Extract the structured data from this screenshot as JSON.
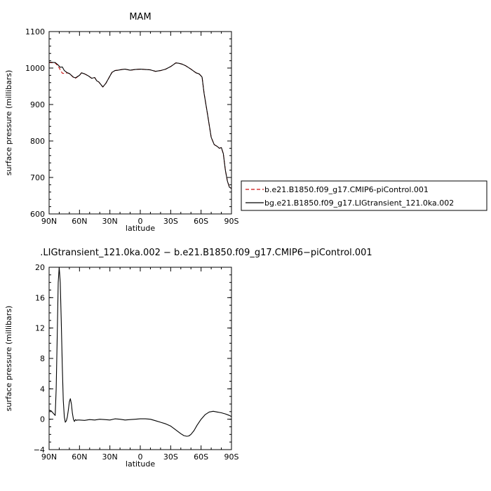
{
  "chart_data": [
    {
      "type": "line",
      "title": "MAM",
      "xlabel": "",
      "ylabel": "surface pressure (millibars)",
      "x_ticks": [
        "90N",
        "60N",
        "30N",
        "0",
        "30S",
        "60S",
        "90S"
      ],
      "x_tick_values": [
        90,
        60,
        30,
        0,
        -30,
        -60,
        -90
      ],
      "y_ticks": [
        "600",
        "700",
        "800",
        "900",
        "1000",
        "1100"
      ],
      "y_tick_values": [
        600,
        700,
        800,
        900,
        1000,
        1100
      ],
      "xlim": [
        90,
        -90
      ],
      "ylim": [
        600,
        1100
      ],
      "legend_position": "right",
      "series": [
        {
          "name": "b.e21.B1850.f09_g17.CMIP6-piControl.001",
          "color": "#cc1111",
          "dash": "dashed",
          "x": [
            90,
            84,
            81,
            79,
            77,
            75,
            72,
            70,
            66,
            64,
            60,
            58,
            55,
            51,
            48,
            45,
            43,
            41,
            39,
            37,
            34,
            32,
            28,
            25,
            22,
            18,
            15,
            10,
            5,
            0,
            -5,
            -10,
            -15,
            -20,
            -25,
            -30,
            -33,
            -35,
            -38,
            -41,
            -45,
            -50,
            -55,
            -58,
            -59.5,
            -61,
            -63,
            -66,
            -70,
            -73,
            -76,
            -78,
            -80,
            -82,
            -84,
            -86,
            -88,
            -90
          ],
          "y": [
            1015,
            1014,
            1005,
            995,
            986,
            985,
            987,
            985,
            974,
            972,
            980,
            987,
            984,
            978,
            972,
            974,
            965,
            962,
            955,
            948,
            958,
            968,
            988,
            993,
            994,
            996,
            997,
            994,
            996,
            997,
            996,
            995,
            991,
            993,
            997,
            1004,
            1010,
            1014,
            1013,
            1011,
            1006,
            997,
            987,
            984,
            980,
            975,
            930,
            880,
            810,
            790,
            785,
            780,
            782,
            765,
            720,
            690,
            673,
            670
          ]
        },
        {
          "name": "bg.e21.B1850.f09_g17.LIGtransient_121.0ka.002",
          "color": "#000000",
          "dash": "solid",
          "x": [
            90,
            84,
            81,
            79,
            77,
            75,
            72,
            70,
            66,
            64,
            60,
            58,
            55,
            51,
            48,
            45,
            43,
            41,
            39,
            37,
            34,
            32,
            28,
            25,
            22,
            18,
            15,
            10,
            5,
            0,
            -5,
            -10,
            -15,
            -20,
            -25,
            -30,
            -33,
            -35,
            -38,
            -41,
            -45,
            -50,
            -55,
            -58,
            -59.5,
            -61,
            -63,
            -66,
            -70,
            -73,
            -76,
            -78,
            -80,
            -82,
            -84,
            -86,
            -88,
            -90
          ],
          "y": [
            1016,
            1015,
            1008,
            1002,
            1003,
            993,
            987,
            985,
            975,
            973,
            980,
            987,
            984,
            978,
            972,
            974,
            965,
            962,
            955,
            948,
            958,
            968,
            988,
            993,
            994,
            996,
            997,
            994,
            996,
            997,
            996,
            995,
            991,
            993,
            997,
            1004,
            1010,
            1014,
            1013,
            1011,
            1006,
            997,
            987,
            984,
            980,
            975,
            930,
            880,
            810,
            790,
            785,
            780,
            782,
            765,
            720,
            690,
            673,
            670
          ]
        }
      ]
    },
    {
      "type": "line",
      "title": ".LIGtransient_121.0ka.002 − b.e21.B1850.f09_g17.CMIP6−piControl.001",
      "xlabel": "latitude",
      "ylabel": "surface pressure (millibars)",
      "x_ticks": [
        "90N",
        "60N",
        "30N",
        "0",
        "30S",
        "60S",
        "90S"
      ],
      "x_tick_values": [
        90,
        60,
        30,
        0,
        -30,
        -60,
        -90
      ],
      "y_ticks": [
        "−4",
        "0",
        "4",
        "8",
        "12",
        "16",
        "20"
      ],
      "y_tick_values": [
        -4,
        0,
        4,
        8,
        12,
        16,
        20
      ],
      "xlim": [
        90,
        -90
      ],
      "ylim": [
        -4,
        20
      ],
      "series": [
        {
          "name": "",
          "color": "#000000",
          "dash": "solid",
          "x": [
            90,
            88,
            86,
            84,
            83,
            82,
            81,
            80,
            79,
            78,
            77,
            76,
            75,
            74,
            73,
            72,
            71,
            70,
            69,
            68,
            67,
            66,
            65,
            64,
            63,
            62,
            60,
            55,
            50,
            45,
            40,
            35,
            30,
            25,
            20,
            15,
            10,
            5,
            0,
            -5,
            -10,
            -15,
            -20,
            -25,
            -30,
            -33,
            -36,
            -40,
            -43,
            -46,
            -48,
            -50,
            -53,
            -56,
            -60,
            -64,
            -68,
            -72,
            -76,
            -80,
            -84,
            -88,
            -90
          ],
          "y": [
            1.2,
            1.1,
            0.8,
            0.5,
            4,
            11,
            18,
            20,
            18,
            13,
            7,
            2.5,
            0.3,
            -0.4,
            -0.2,
            0.3,
            1.2,
            2.3,
            2.7,
            2.0,
            0.8,
            0.0,
            -0.3,
            -0.05,
            -0.15,
            -0.1,
            -0.1,
            -0.15,
            -0.05,
            -0.1,
            0.0,
            -0.05,
            -0.1,
            0.05,
            0.0,
            -0.1,
            -0.05,
            0.0,
            0.05,
            0.05,
            0.0,
            -0.2,
            -0.4,
            -0.6,
            -0.9,
            -1.2,
            -1.5,
            -1.9,
            -2.15,
            -2.25,
            -2.2,
            -2.0,
            -1.5,
            -0.8,
            0.0,
            0.6,
            0.95,
            1.05,
            0.95,
            0.85,
            0.7,
            0.5,
            0.35
          ]
        }
      ]
    }
  ]
}
